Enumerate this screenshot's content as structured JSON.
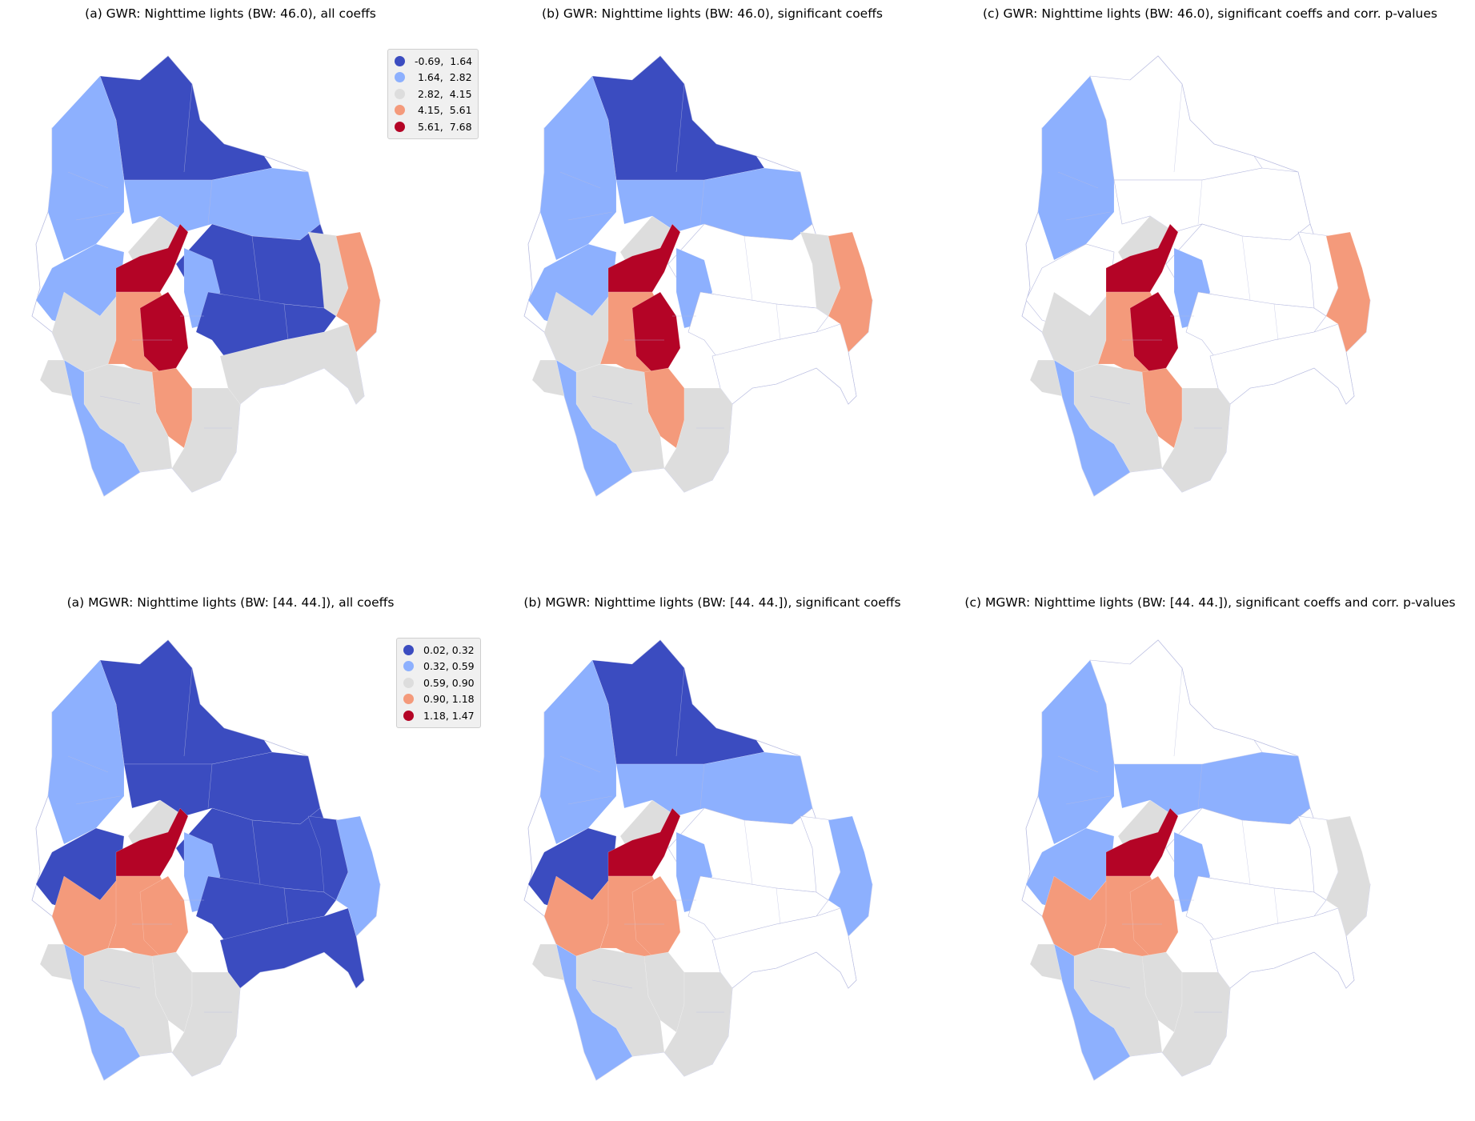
{
  "panels": [
    {
      "title": "(a) GWR: Nighttime lights (BW: 46.0), all coeffs"
    },
    {
      "title": "(b) GWR: Nighttime lights (BW: 46.0), significant coeffs"
    },
    {
      "title": "(c) GWR: Nighttime lights (BW: 46.0), significant coeffs and corr. p-values"
    },
    {
      "title": "(a) MGWR: Nighttime lights (BW: [44. 44.]), all coeffs"
    },
    {
      "title": "(b) MGWR: Nighttime lights (BW: [44. 44.]), significant coeffs"
    },
    {
      "title": "(c) MGWR: Nighttime lights (BW: [44. 44.]), significant coeffs and corr. p-values"
    }
  ],
  "legends": {
    "gwr": [
      "-0.69,  1.64",
      " 1.64,  2.82",
      " 2.82,  4.15",
      " 4.15,  5.61",
      " 5.61,  7.68"
    ],
    "mgwr": [
      "0.02, 0.32",
      "0.32, 0.59",
      "0.59, 0.90",
      "0.90, 1.18",
      "1.18, 1.47"
    ]
  },
  "colors": {
    "class1": "#3b4cc0",
    "class2": "#8db0fe",
    "class3": "#dddddd",
    "class4": "#f49a7b",
    "class5": "#b40426",
    "outline": "#b8bce0"
  }
}
